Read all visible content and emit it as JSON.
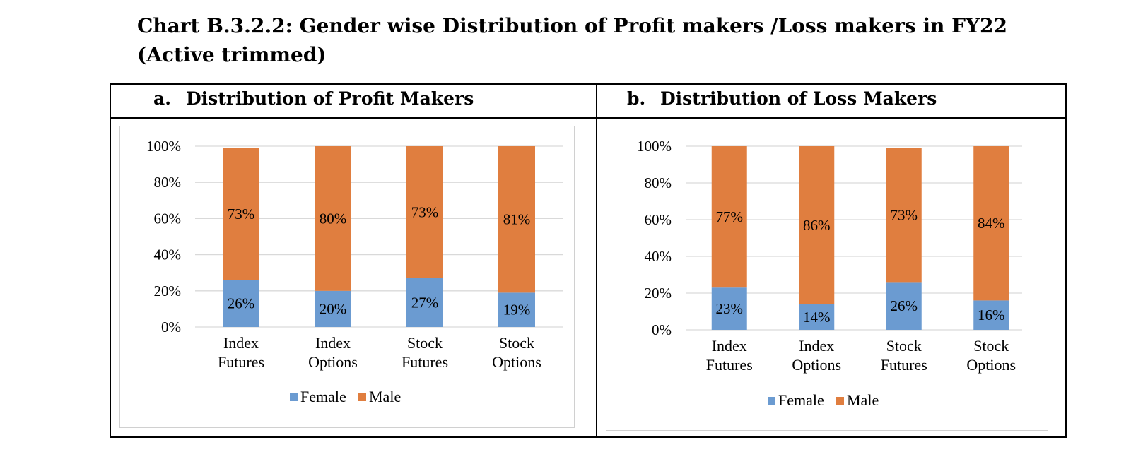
{
  "page_title": "Chart B.3.2.2: Gender wise Distribution of Profit makers /Loss makers in FY22 (Active trimmed)",
  "colors": {
    "female": "#6b9bd1",
    "male": "#e07e3f",
    "grid": "#d9d9d9"
  },
  "chart_data": [
    {
      "type": "bar",
      "stacked": true,
      "letter": "a.",
      "title": "Distribution of Profit Makers",
      "categories": [
        [
          "Index",
          "Futures"
        ],
        [
          "Index",
          "Options"
        ],
        [
          "Stock",
          "Futures"
        ],
        [
          "Stock",
          "Options"
        ]
      ],
      "series": [
        {
          "name": "Female",
          "values": [
            26,
            20,
            27,
            19
          ],
          "labels": [
            "26%",
            "20%",
            "27%",
            "19%"
          ]
        },
        {
          "name": "Male",
          "values": [
            73,
            80,
            73,
            81
          ],
          "labels": [
            "73%",
            "80%",
            "73%",
            "81%"
          ]
        }
      ],
      "yticks": [
        "0%",
        "20%",
        "40%",
        "60%",
        "80%",
        "100%"
      ],
      "ylim": [
        0,
        100
      ],
      "grid": true,
      "legend": "bottom"
    },
    {
      "type": "bar",
      "stacked": true,
      "letter": "b.",
      "title": "Distribution of Loss Makers",
      "categories": [
        [
          "Index",
          "Futures"
        ],
        [
          "Index",
          "Options"
        ],
        [
          "Stock",
          "Futures"
        ],
        [
          "Stock",
          "Options"
        ]
      ],
      "series": [
        {
          "name": "Female",
          "values": [
            23,
            14,
            26,
            16
          ],
          "labels": [
            "23%",
            "14%",
            "26%",
            "16%"
          ]
        },
        {
          "name": "Male",
          "values": [
            77,
            86,
            73,
            84
          ],
          "labels": [
            "77%",
            "86%",
            "73%",
            "84%"
          ]
        }
      ],
      "yticks": [
        "0%",
        "20%",
        "40%",
        "60%",
        "80%",
        "100%"
      ],
      "ylim": [
        0,
        100
      ],
      "grid": true,
      "legend": "bottom"
    }
  ]
}
